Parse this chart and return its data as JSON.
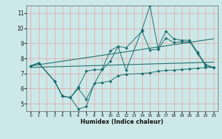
{
  "xlabel": "Humidex (Indice chaleur)",
  "bg_color": "#cce8e8",
  "grid_color": "#e8a0a0",
  "line_color": "#1a6b6b",
  "xlim": [
    -0.5,
    23.5
  ],
  "ylim": [
    4.5,
    11.5
  ],
  "xticks": [
    0,
    1,
    2,
    3,
    4,
    5,
    6,
    7,
    8,
    9,
    10,
    11,
    12,
    13,
    14,
    15,
    16,
    17,
    18,
    19,
    20,
    21,
    22,
    23
  ],
  "yticks": [
    5,
    6,
    7,
    8,
    9,
    10,
    11
  ],
  "x_upper": [
    0,
    1,
    3,
    4,
    5,
    6,
    7,
    9,
    10,
    11,
    12,
    14,
    15,
    16,
    17,
    18,
    19,
    20,
    21,
    22,
    23
  ],
  "y_upper": [
    7.5,
    7.7,
    6.5,
    5.5,
    5.4,
    6.0,
    5.3,
    7.3,
    8.5,
    8.8,
    7.2,
    9.9,
    11.5,
    8.7,
    9.8,
    9.3,
    9.2,
    9.2,
    8.4,
    7.6,
    7.4
  ],
  "x_mid": [
    0,
    1,
    3,
    4,
    5,
    6,
    7,
    8,
    9,
    10,
    11,
    12,
    14,
    15,
    16,
    17,
    18,
    19,
    20,
    21,
    22,
    23
  ],
  "y_mid": [
    7.5,
    7.7,
    6.5,
    5.5,
    5.4,
    6.1,
    7.15,
    7.25,
    7.25,
    7.8,
    8.8,
    8.7,
    9.8,
    8.55,
    8.6,
    9.35,
    9.05,
    9.1,
    9.1,
    8.3,
    7.5,
    7.4
  ],
  "x_low": [
    0,
    1,
    3,
    4,
    5,
    6,
    7,
    8,
    9,
    10,
    11,
    12,
    14,
    15,
    16,
    17,
    18,
    19,
    20,
    21,
    22,
    23
  ],
  "y_low": [
    7.5,
    7.7,
    6.5,
    5.5,
    5.4,
    4.65,
    4.8,
    6.35,
    6.4,
    6.5,
    6.85,
    6.95,
    7.0,
    7.05,
    7.15,
    7.2,
    7.22,
    7.27,
    7.3,
    7.35,
    7.38,
    7.4
  ],
  "trend1_x": [
    0,
    23
  ],
  "trend1_y": [
    7.5,
    9.3
  ],
  "trend2_x": [
    0,
    23
  ],
  "trend2_y": [
    7.4,
    7.75
  ]
}
